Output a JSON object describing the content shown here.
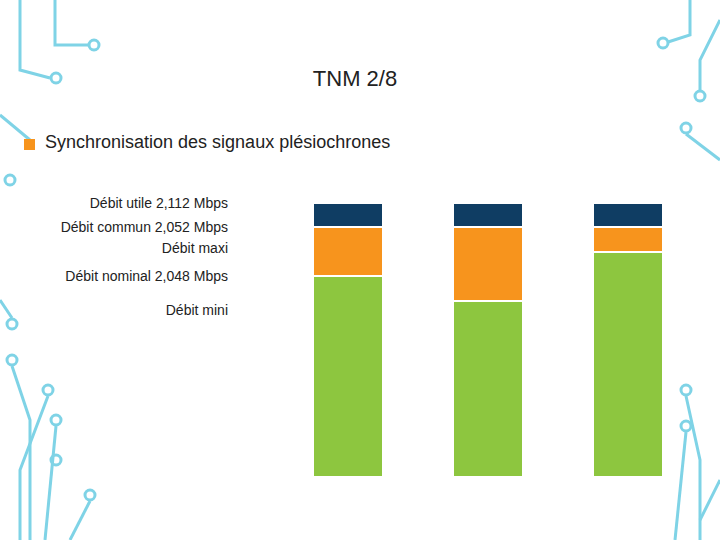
{
  "chart_data": {
    "type": "bar",
    "title": "TNM 2/8",
    "subtitle": "Synchronisation des signaux plésiochrones",
    "stacked": true,
    "tick_labels": false,
    "categories": [
      null,
      null,
      null
    ],
    "ylim": [
      0,
      2.112
    ],
    "annotations": [
      "Débit utile 2,112 Mbps",
      "Débit commun 2,052 Mbps",
      "Débit maxi",
      "Débit nominal 2,048 Mbps",
      "Débit mini"
    ],
    "series": [
      {
        "color": "#8dc63f",
        "values": [
          1.549,
          1.357,
          1.734
        ]
      },
      {
        "color": "#f7941d",
        "values": [
          0.378,
          0.57,
          0.193
        ]
      },
      {
        "color": "#0f3d63",
        "values": [
          0.185,
          0.185,
          0.185
        ]
      }
    ]
  }
}
